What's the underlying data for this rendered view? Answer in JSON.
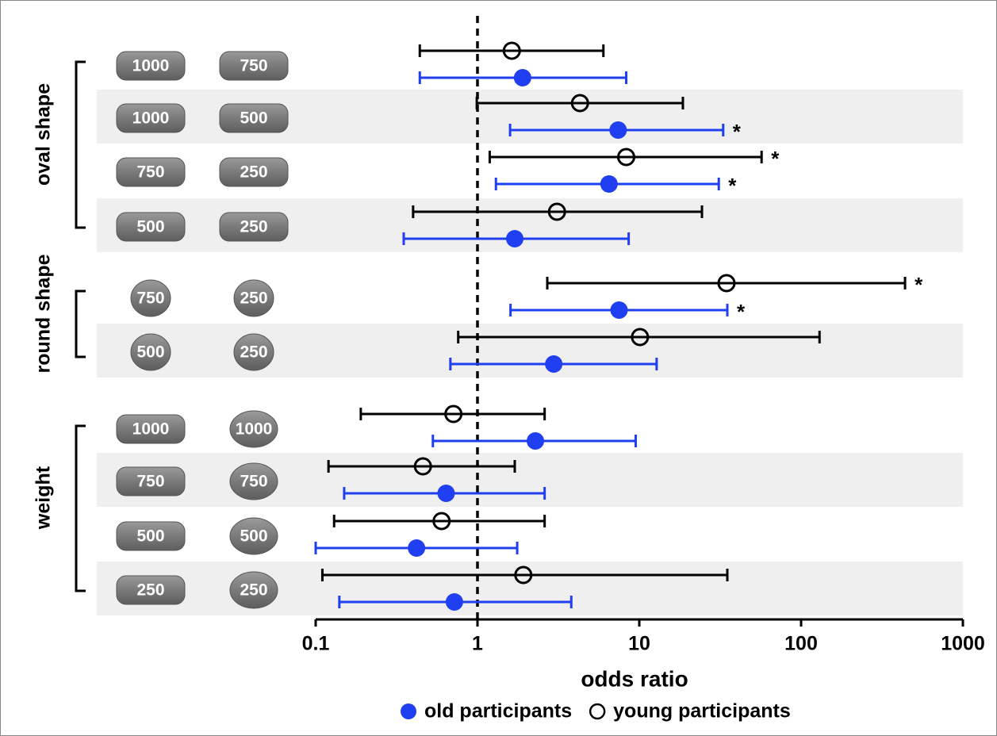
{
  "chart_data": {
    "type": "forest",
    "xlabel": "odds ratio",
    "xscale": "log",
    "xlim": [
      0.1,
      1000
    ],
    "xticks": [
      0.1,
      1,
      10,
      100,
      1000
    ],
    "reference_line": 1,
    "groups": [
      {
        "label": "oval shape",
        "rows": [
          {
            "left": "1000",
            "right": "750"
          },
          {
            "left": "1000",
            "right": "500"
          },
          {
            "left": "750",
            "right": "250"
          },
          {
            "left": "500",
            "right": "250"
          }
        ]
      },
      {
        "label": "round shape",
        "rows": [
          {
            "left": "750",
            "right": "250"
          },
          {
            "left": "500",
            "right": "250"
          }
        ]
      },
      {
        "label": "weight",
        "rows": [
          {
            "left": "1000",
            "right": "1000"
          },
          {
            "left": "750",
            "right": "750"
          },
          {
            "left": "500",
            "right": "500"
          },
          {
            "left": "250",
            "right": "250"
          }
        ]
      }
    ],
    "series": [
      {
        "name": "old participants",
        "color": "#1f3ff0",
        "marker": "filled",
        "values": [
          1.9,
          7.4,
          6.5,
          1.7,
          7.5,
          2.96,
          2.28,
          0.64,
          0.42,
          0.72
        ],
        "lower": [
          0.44,
          1.59,
          1.3,
          0.35,
          1.6,
          0.68,
          0.53,
          0.15,
          0.1,
          0.14
        ],
        "upper": [
          8.3,
          33,
          31,
          8.6,
          35,
          12.8,
          9.5,
          2.6,
          1.76,
          3.8
        ],
        "annotations": [
          null,
          "*",
          "*",
          null,
          "*",
          null,
          null,
          null,
          null,
          null
        ]
      },
      {
        "name": "young participants",
        "color": "#000000",
        "marker": "open",
        "values": [
          1.63,
          4.3,
          8.3,
          3.1,
          34.6,
          10.1,
          0.71,
          0.46,
          0.6,
          1.92
        ],
        "lower": [
          0.44,
          0.99,
          1.19,
          0.4,
          2.7,
          0.76,
          0.19,
          0.12,
          0.13,
          0.11
        ],
        "upper": [
          6.0,
          18.6,
          57,
          24.4,
          439,
          130,
          2.6,
          1.7,
          2.6,
          35
        ],
        "annotations": [
          null,
          null,
          "*",
          null,
          "*",
          null,
          null,
          null,
          null,
          null
        ]
      }
    ]
  }
}
